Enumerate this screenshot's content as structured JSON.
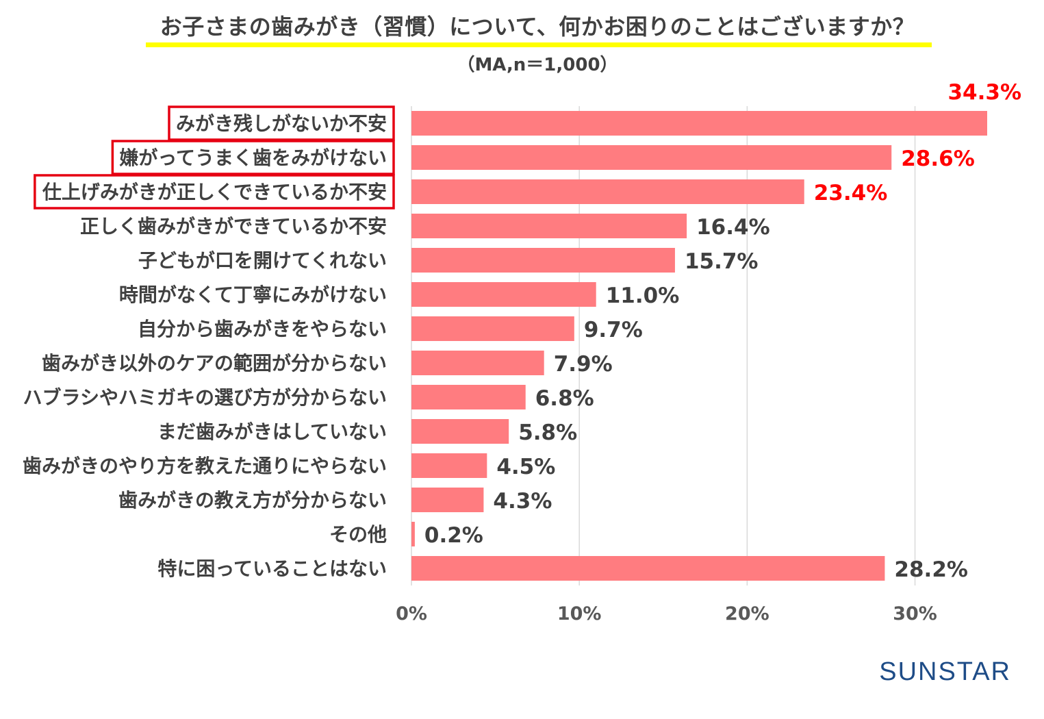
{
  "title": "お子さまの歯みがき（習慣）について、何かお困りのことはございますか？",
  "subtitle": "（MA,n＝1,000）",
  "brand": "SUNSTAR",
  "colors": {
    "bar": "#ff7c80",
    "highlight_text": "#ff0000",
    "highlight_box": "#e60012",
    "text": "#404040",
    "grid": "#d9d9d9",
    "title_underline": "#ffff00"
  },
  "chart_data": {
    "type": "bar",
    "orientation": "horizontal",
    "categories": [
      "みがき残しがないか不安",
      "嫌がってうまく歯をみがけない",
      "仕上げみがきが正しくできているか不安",
      "正しく歯みがきができているか不安",
      "子どもが口を開けてくれない",
      "時間がなくて丁寧にみがけない",
      "自分から歯みがきをやらない",
      "歯みがき以外のケアの範囲が分からない",
      "ハブラシやハミガキの選び方が分からない",
      "まだ歯みがきはしていない",
      "歯みがきのやり方を教えた通りにやらない",
      "歯みがきの教え方が分からない",
      "その他",
      "特に困っていることはない"
    ],
    "values": [
      34.3,
      28.6,
      23.4,
      16.4,
      15.7,
      11.0,
      9.7,
      7.9,
      6.8,
      5.8,
      4.5,
      4.3,
      0.2,
      28.2
    ],
    "data_labels": [
      "34.3%",
      "28.6%",
      "23.4%",
      "16.4%",
      "15.7%",
      "11.0%",
      "9.7%",
      "7.9%",
      "6.8%",
      "5.8%",
      "4.5%",
      "4.3%",
      "0.2%",
      "28.2%"
    ],
    "highlighted": [
      0,
      1,
      2
    ],
    "xlim": [
      0,
      34.3
    ],
    "xticks": [
      0,
      10,
      20,
      30
    ],
    "xtick_labels": [
      "0%",
      "10%",
      "20%",
      "30%"
    ],
    "grid": true,
    "legend": false
  }
}
